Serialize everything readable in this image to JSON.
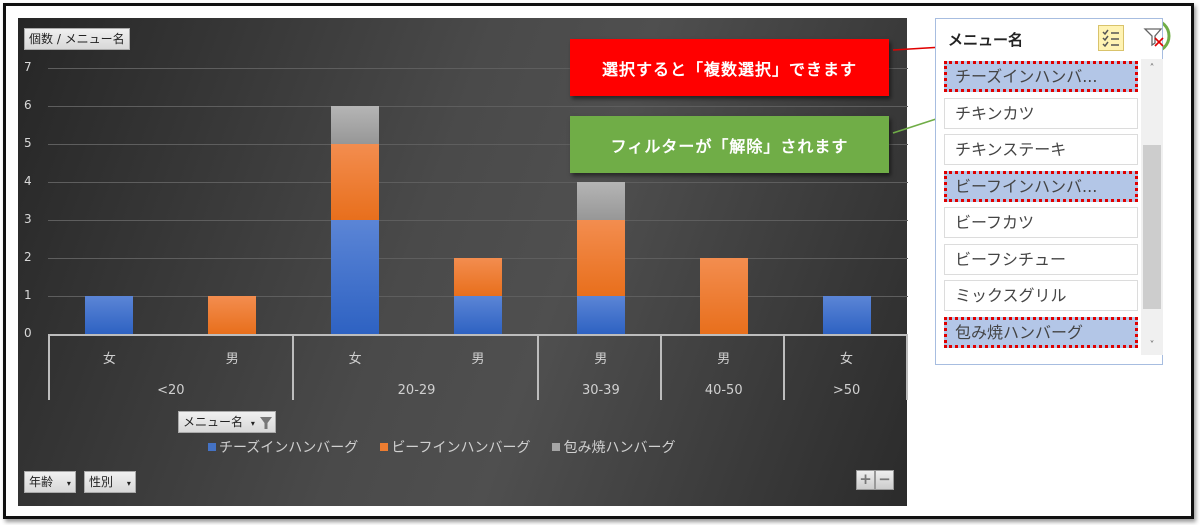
{
  "chart": {
    "value_field_button": "個数 / メニュー名",
    "legend_field_button": "メニュー名",
    "axis_field_buttons": [
      {
        "label": "年齢"
      },
      {
        "label": "性別"
      }
    ],
    "y_ticks": [
      "0",
      "1",
      "2",
      "3",
      "4",
      "5",
      "6",
      "7"
    ],
    "zoom_buttons": {
      "plus": "+",
      "minus": "−"
    }
  },
  "chart_data": {
    "type": "bar",
    "stacked": true,
    "title": "",
    "xlabel": "",
    "ylabel": "個数 / メニュー名",
    "ylim": [
      0,
      7
    ],
    "grid": true,
    "legend_position": "bottom",
    "categories": [
      {
        "group": "<20",
        "sub": "女"
      },
      {
        "group": "<20",
        "sub": "男"
      },
      {
        "group": "20-29",
        "sub": "女"
      },
      {
        "group": "20-29",
        "sub": "男"
      },
      {
        "group": "30-39",
        "sub": "男"
      },
      {
        "group": "40-50",
        "sub": "男"
      },
      {
        "group": ">50",
        "sub": "女"
      }
    ],
    "groups": [
      {
        "label": "<20",
        "span": 2
      },
      {
        "label": "20-29",
        "span": 2
      },
      {
        "label": "30-39",
        "span": 1
      },
      {
        "label": "40-50",
        "span": 1
      },
      {
        "label": ">50",
        "span": 1
      }
    ],
    "series": [
      {
        "name": "チーズインハンバーグ",
        "color": "#4472c4",
        "values": [
          1,
          0,
          3,
          1,
          1,
          0,
          1
        ]
      },
      {
        "name": "ビーフインハンバーグ",
        "color": "#ed7d31",
        "values": [
          0,
          1,
          2,
          1,
          2,
          2,
          0
        ]
      },
      {
        "name": "包み焼ハンバーグ",
        "color": "#a5a5a5",
        "values": [
          0,
          0,
          1,
          0,
          1,
          0,
          0
        ]
      }
    ]
  },
  "callouts": {
    "multi_select": {
      "text": "選択すると「複数選択」できます",
      "color": "#ff0000"
    },
    "clear_filter": {
      "text": "フィルターが「解除」されます",
      "color": "#70ad47"
    }
  },
  "slicer": {
    "title": "メニュー名",
    "multi_select_icon": "multi-select-icon",
    "clear_filter_icon": "clear-filter-icon",
    "items": [
      {
        "label": "チーズインハンバ...",
        "selected": true
      },
      {
        "label": "チキンカツ",
        "selected": false
      },
      {
        "label": "チキンステーキ",
        "selected": false
      },
      {
        "label": "ビーフインハンバ...",
        "selected": true
      },
      {
        "label": "ビーフカツ",
        "selected": false
      },
      {
        "label": "ビーフシチュー",
        "selected": false
      },
      {
        "label": "ミックスグリル",
        "selected": false
      },
      {
        "label": "包み焼ハンバーグ",
        "selected": true
      }
    ],
    "scroll_up": "˄",
    "scroll_down": "˅"
  }
}
